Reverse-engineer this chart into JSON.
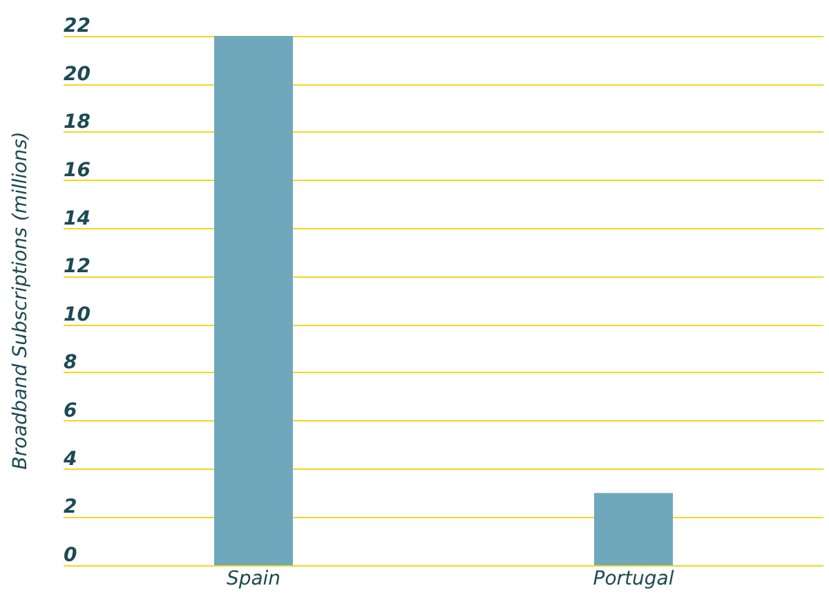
{
  "chart_data": {
    "type": "bar",
    "ylabel": "Broadband Subscriptions (millions)",
    "categories": [
      "Spain",
      "Portugal"
    ],
    "values": [
      22,
      3
    ],
    "color": "#6fa8bc",
    "ylim": [
      0,
      22
    ],
    "yticks": [
      0,
      2,
      4,
      6,
      8,
      10,
      12,
      14,
      16,
      18,
      20,
      22
    ],
    "grid": "y"
  }
}
